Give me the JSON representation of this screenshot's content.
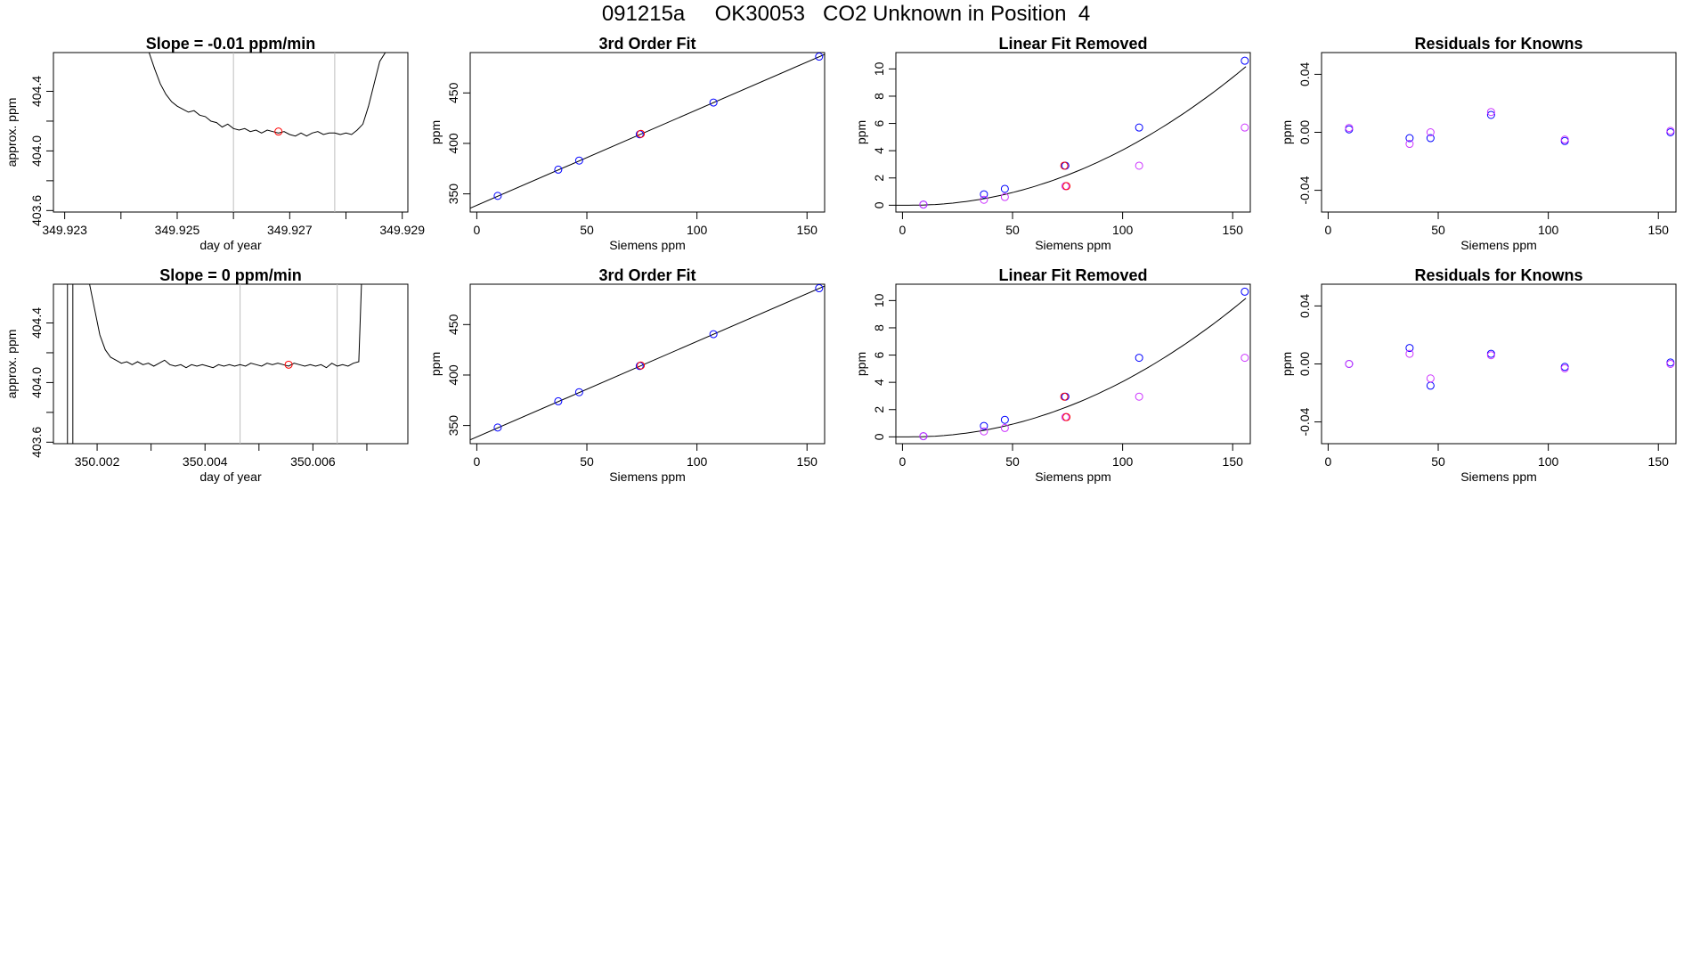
{
  "title": "091215a     OK30053   CO2 Unknown in Position  4",
  "colors": {
    "axis": "#000000",
    "line": "#000000",
    "known": "#0000ff",
    "alt": "#cc33ff",
    "highlight": "#ff0000",
    "purple": "#7a00d6",
    "gridline": "#bdbdbd"
  },
  "chart_data": [
    {
      "id": "p11",
      "type": "line",
      "title": "Slope =  -0.01  ppm/min",
      "xlabel": "day of year",
      "ylabel": "approx. ppm",
      "xlim": [
        349.9228,
        349.9291
      ],
      "ylim": [
        403.59,
        404.66
      ],
      "xticks": [
        349.923,
        349.924,
        349.925,
        349.926,
        349.927,
        349.928,
        349.929
      ],
      "xticklabels": [
        "349.923",
        "",
        "349.925",
        "",
        "349.927",
        "",
        "349.929"
      ],
      "yticks": [
        403.6,
        403.8,
        404.0,
        404.2,
        404.4
      ],
      "yticklabels": [
        "403.6",
        "",
        "404.0",
        "",
        "404.4"
      ],
      "vlines": [
        349.926,
        349.9278
      ],
      "series": [
        {
          "x": [
            349.9245,
            349.9246,
            349.9247,
            349.9248,
            349.9249,
            349.925,
            349.9251,
            349.9252,
            349.9253,
            349.9254,
            349.9255,
            349.9256,
            349.9257,
            349.9258,
            349.9259,
            349.926,
            349.9261,
            349.9262,
            349.9263,
            349.9264,
            349.9265,
            349.9266,
            349.9267,
            349.9268,
            349.9269,
            349.927,
            349.9271,
            349.9272,
            349.9273,
            349.9274,
            349.9275,
            349.9276,
            349.9277,
            349.9278,
            349.9279,
            349.928,
            349.9281,
            349.9282,
            349.9283,
            349.9284,
            349.9285,
            349.9286,
            349.9287,
            349.9288
          ],
          "y": [
            404.66,
            404.55,
            404.45,
            404.38,
            404.33,
            404.3,
            404.28,
            404.26,
            404.27,
            404.24,
            404.23,
            404.2,
            404.19,
            404.16,
            404.18,
            404.15,
            404.14,
            404.15,
            404.13,
            404.14,
            404.12,
            404.14,
            404.13,
            404.12,
            404.13,
            404.11,
            404.1,
            404.12,
            404.1,
            404.12,
            404.13,
            404.11,
            404.12,
            404.12,
            404.11,
            404.12,
            404.11,
            404.14,
            404.18,
            404.3,
            404.45,
            404.6,
            404.66,
            404.66
          ]
        }
      ],
      "points": [
        {
          "x": 349.9268,
          "y": 404.13,
          "color": "highlight"
        }
      ]
    },
    {
      "id": "p12",
      "type": "scatter",
      "title": "3rd Order Fit",
      "xlabel": "Siemens ppm",
      "ylabel": "ppm",
      "xlim": [
        -3,
        158
      ],
      "ylim": [
        332,
        490
      ],
      "xticks": [
        0,
        50,
        100,
        150
      ],
      "xticklabels": [
        "0",
        "50",
        "100",
        "150"
      ],
      "yticks": [
        350,
        400,
        450
      ],
      "yticklabels": [
        "350",
        "400",
        "450"
      ],
      "line": {
        "x": [
          -3,
          158
        ],
        "y": [
          335.8,
          488.2
        ]
      },
      "points": [
        {
          "x": 9.5,
          "y": 348.0,
          "color": "known"
        },
        {
          "x": 37,
          "y": 374.0,
          "color": "known"
        },
        {
          "x": 46.5,
          "y": 383.0,
          "color": "known"
        },
        {
          "x": 74,
          "y": 409.0,
          "color": "known"
        },
        {
          "x": 74.5,
          "y": 409.5,
          "color": "highlight"
        },
        {
          "x": 107.5,
          "y": 440.5,
          "color": "known"
        },
        {
          "x": 155.5,
          "y": 486.0,
          "color": "known"
        }
      ]
    },
    {
      "id": "p13",
      "type": "scatter",
      "title": "Linear Fit Removed",
      "xlabel": "Siemens ppm",
      "ylabel": "ppm",
      "xlim": [
        -3,
        158
      ],
      "ylim": [
        -0.5,
        11.2
      ],
      "xticks": [
        0,
        50,
        100,
        150
      ],
      "xticklabels": [
        "0",
        "50",
        "100",
        "150"
      ],
      "yticks": [
        0,
        2,
        4,
        6,
        8,
        10
      ],
      "yticklabels": [
        "0",
        "2",
        "4",
        "6",
        "8",
        "10"
      ],
      "curve": {
        "x0": -3,
        "x1": 156,
        "a": 0.00044,
        "p": 2
      },
      "points": [
        {
          "x": 9.5,
          "y": 0.05,
          "color": "known"
        },
        {
          "x": 37,
          "y": 0.8,
          "color": "known"
        },
        {
          "x": 46.5,
          "y": 1.2,
          "color": "known"
        },
        {
          "x": 74,
          "y": 2.9,
          "color": "known"
        },
        {
          "x": 107.5,
          "y": 5.7,
          "color": "known"
        },
        {
          "x": 155.5,
          "y": 10.6,
          "color": "known"
        },
        {
          "x": 9.5,
          "y": 0.05,
          "color": "alt"
        },
        {
          "x": 37,
          "y": 0.4,
          "color": "alt"
        },
        {
          "x": 46.5,
          "y": 0.6,
          "color": "alt"
        },
        {
          "x": 74,
          "y": 1.4,
          "color": "alt"
        },
        {
          "x": 107.5,
          "y": 2.9,
          "color": "alt"
        },
        {
          "x": 155.5,
          "y": 5.7,
          "color": "alt"
        },
        {
          "x": 73.5,
          "y": 2.9,
          "color": "highlight"
        },
        {
          "x": 74.5,
          "y": 1.4,
          "color": "highlight"
        }
      ]
    },
    {
      "id": "p14",
      "type": "scatter",
      "title": "Residuals for Knowns",
      "xlabel": "Siemens ppm",
      "ylabel": "ppm",
      "xlim": [
        -3,
        158
      ],
      "ylim": [
        -0.055,
        0.055
      ],
      "xticks": [
        0,
        50,
        100,
        150
      ],
      "xticklabels": [
        "0",
        "50",
        "100",
        "150"
      ],
      "yticks": [
        -0.04,
        0.0,
        0.04
      ],
      "yticklabels": [
        "-0.04",
        "0.00",
        "0.04"
      ],
      "points": [
        {
          "x": 9.5,
          "y": 0.002,
          "color": "known"
        },
        {
          "x": 37,
          "y": -0.004,
          "color": "known"
        },
        {
          "x": 46.5,
          "y": -0.004,
          "color": "known"
        },
        {
          "x": 74,
          "y": 0.012,
          "color": "known"
        },
        {
          "x": 107.5,
          "y": -0.006,
          "color": "known"
        },
        {
          "x": 155.5,
          "y": 0.0,
          "color": "known"
        },
        {
          "x": 9.5,
          "y": 0.003,
          "color": "alt"
        },
        {
          "x": 37,
          "y": -0.008,
          "color": "alt"
        },
        {
          "x": 46.5,
          "y": 0.0,
          "color": "alt"
        },
        {
          "x": 74,
          "y": 0.014,
          "color": "alt"
        },
        {
          "x": 107.5,
          "y": -0.005,
          "color": "alt"
        },
        {
          "x": 155.5,
          "y": 0.001,
          "color": "alt"
        }
      ]
    },
    {
      "id": "p21",
      "type": "line",
      "title": "Slope =  0  ppm/min",
      "xlabel": "day of year",
      "ylabel": "approx. ppm",
      "xlim": [
        350.00119,
        350.00776
      ],
      "ylim": [
        403.59,
        404.66
      ],
      "xticks": [
        350.002,
        350.003,
        350.004,
        350.005,
        350.006,
        350.007
      ],
      "xticklabels": [
        "350.002",
        "",
        "350.004",
        "",
        "350.006",
        ""
      ],
      "yticks": [
        403.6,
        403.8,
        404.0,
        404.2,
        404.4
      ],
      "yticklabels": [
        "403.6",
        "",
        "404.0",
        "",
        "404.4"
      ],
      "vlines": [
        350.00465,
        350.00645
      ],
      "series": [
        {
          "x": [
            350.00186,
            350.00195,
            350.00205,
            350.00215,
            350.00225,
            350.00235,
            350.00245,
            350.00255,
            350.00265,
            350.00275,
            350.00285,
            350.00295,
            350.00305,
            350.00315,
            350.00325,
            350.00335,
            350.00345,
            350.00355,
            350.00365,
            350.00375,
            350.00385,
            350.00395,
            350.00405,
            350.00415,
            350.00425,
            350.00435,
            350.00445,
            350.00455,
            350.00465,
            350.00475,
            350.00485,
            350.00495,
            350.00505,
            350.00515,
            350.00525,
            350.00535,
            350.00545,
            350.00555,
            350.00565,
            350.00575,
            350.00585,
            350.00595,
            350.00605,
            350.00615,
            350.00625,
            350.00635,
            350.00645,
            350.00655,
            350.00665,
            350.00675,
            350.00685,
            350.0069
          ],
          "y": [
            404.66,
            404.5,
            404.32,
            404.22,
            404.17,
            404.15,
            404.13,
            404.14,
            404.12,
            404.14,
            404.12,
            404.13,
            404.11,
            404.13,
            404.15,
            404.12,
            404.11,
            404.12,
            404.1,
            404.12,
            404.11,
            404.12,
            404.11,
            404.1,
            404.12,
            404.11,
            404.12,
            404.11,
            404.12,
            404.11,
            404.13,
            404.12,
            404.11,
            404.13,
            404.12,
            404.13,
            404.12,
            404.11,
            404.13,
            404.12,
            404.11,
            404.12,
            404.11,
            404.12,
            404.1,
            404.13,
            404.11,
            404.12,
            404.11,
            404.13,
            404.14,
            404.66
          ]
        }
      ],
      "left_bars": [
        350.00145,
        350.00155
      ],
      "points": [
        {
          "x": 350.00555,
          "y": 404.12,
          "color": "highlight"
        }
      ]
    },
    {
      "id": "p22",
      "type": "scatter",
      "title": "3rd Order Fit",
      "xlabel": "Siemens ppm",
      "ylabel": "ppm",
      "xlim": [
        -3,
        158
      ],
      "ylim": [
        332,
        490
      ],
      "xticks": [
        0,
        50,
        100,
        150
      ],
      "xticklabels": [
        "0",
        "50",
        "100",
        "150"
      ],
      "yticks": [
        350,
        400,
        450
      ],
      "yticklabels": [
        "350",
        "400",
        "450"
      ],
      "line": {
        "x": [
          -3,
          158
        ],
        "y": [
          335.8,
          488.2
        ]
      },
      "points": [
        {
          "x": 9.5,
          "y": 348.0,
          "color": "known"
        },
        {
          "x": 37,
          "y": 374.0,
          "color": "known"
        },
        {
          "x": 46.5,
          "y": 383.0,
          "color": "known"
        },
        {
          "x": 74,
          "y": 409.0,
          "color": "known"
        },
        {
          "x": 74.5,
          "y": 409.5,
          "color": "highlight"
        },
        {
          "x": 107.5,
          "y": 440.5,
          "color": "known"
        },
        {
          "x": 155.5,
          "y": 486.0,
          "color": "known"
        }
      ]
    },
    {
      "id": "p23",
      "type": "scatter",
      "title": "Linear Fit Removed",
      "xlabel": "Siemens ppm",
      "ylabel": "ppm",
      "xlim": [
        -3,
        158
      ],
      "ylim": [
        -0.5,
        11.2
      ],
      "xticks": [
        0,
        50,
        100,
        150
      ],
      "xticklabels": [
        "0",
        "50",
        "100",
        "150"
      ],
      "yticks": [
        0,
        2,
        4,
        6,
        8,
        10
      ],
      "yticklabels": [
        "0",
        "2",
        "4",
        "6",
        "8",
        "10"
      ],
      "curve": {
        "x0": -3,
        "x1": 156,
        "a": 0.00044,
        "p": 2
      },
      "points": [
        {
          "x": 9.5,
          "y": 0.05,
          "color": "known"
        },
        {
          "x": 37,
          "y": 0.8,
          "color": "known"
        },
        {
          "x": 46.5,
          "y": 1.25,
          "color": "known"
        },
        {
          "x": 74,
          "y": 2.95,
          "color": "known"
        },
        {
          "x": 107.5,
          "y": 5.8,
          "color": "known"
        },
        {
          "x": 155.5,
          "y": 10.65,
          "color": "known"
        },
        {
          "x": 9.5,
          "y": 0.05,
          "color": "alt"
        },
        {
          "x": 37,
          "y": 0.4,
          "color": "alt"
        },
        {
          "x": 46.5,
          "y": 0.65,
          "color": "alt"
        },
        {
          "x": 74,
          "y": 1.45,
          "color": "alt"
        },
        {
          "x": 107.5,
          "y": 2.95,
          "color": "alt"
        },
        {
          "x": 155.5,
          "y": 5.8,
          "color": "alt"
        },
        {
          "x": 73.5,
          "y": 2.95,
          "color": "highlight"
        },
        {
          "x": 74.5,
          "y": 1.45,
          "color": "highlight"
        }
      ]
    },
    {
      "id": "p24",
      "type": "scatter",
      "title": "Residuals for Knowns",
      "xlabel": "Siemens ppm",
      "ylabel": "ppm",
      "xlim": [
        -3,
        158
      ],
      "ylim": [
        -0.055,
        0.055
      ],
      "xticks": [
        0,
        50,
        100,
        150
      ],
      "xticklabels": [
        "0",
        "50",
        "100",
        "150"
      ],
      "yticks": [
        -0.04,
        0.0,
        0.04
      ],
      "yticklabels": [
        "-0.04",
        "0.00",
        "0.04"
      ],
      "points": [
        {
          "x": 9.5,
          "y": 0.0,
          "color": "known"
        },
        {
          "x": 37,
          "y": 0.011,
          "color": "known"
        },
        {
          "x": 46.5,
          "y": -0.015,
          "color": "known"
        },
        {
          "x": 74,
          "y": 0.007,
          "color": "known"
        },
        {
          "x": 107.5,
          "y": -0.002,
          "color": "known"
        },
        {
          "x": 155.5,
          "y": 0.001,
          "color": "known"
        },
        {
          "x": 9.5,
          "y": 0.0,
          "color": "alt"
        },
        {
          "x": 37,
          "y": 0.007,
          "color": "alt"
        },
        {
          "x": 46.5,
          "y": -0.01,
          "color": "alt"
        },
        {
          "x": 74,
          "y": 0.006,
          "color": "alt"
        },
        {
          "x": 107.5,
          "y": -0.003,
          "color": "alt"
        },
        {
          "x": 155.5,
          "y": 0.0,
          "color": "alt"
        }
      ]
    }
  ]
}
